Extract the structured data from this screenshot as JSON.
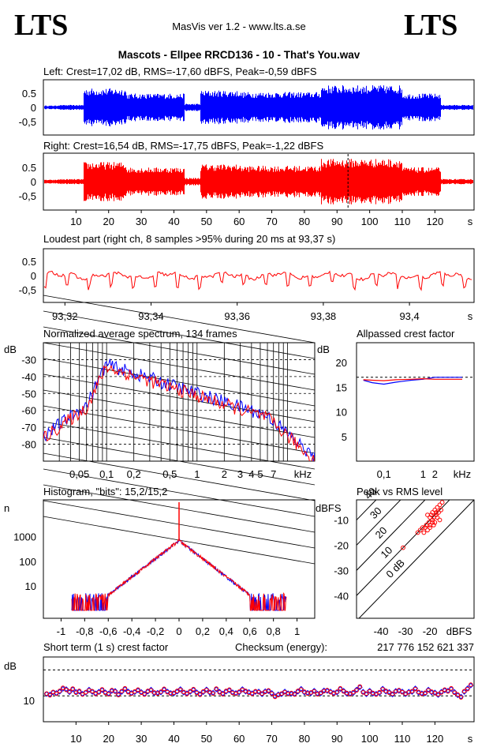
{
  "header": {
    "logo_left": "LTS",
    "logo_right": "LTS",
    "app": "MasVis ver 1.2 - www.lts.a.se",
    "track": "Mascots - Ellpee RRCD136 - 10 - That's You.wav"
  },
  "colors": {
    "left": "#0000ff",
    "right": "#ff0000"
  },
  "chart_data": [
    {
      "type": "line",
      "title": "Left: Crest=17,02 dB, RMS=-17,60 dBFS, Peak=-0,59 dBFS",
      "yticks": [
        "0.5",
        "0",
        "-0,5"
      ],
      "ylim": [
        -1,
        1
      ],
      "xlim": [
        0,
        132
      ],
      "series": [
        {
          "name": "Left",
          "color": "#0000ff"
        }
      ]
    },
    {
      "type": "line",
      "title": "Right: Crest=16,54 dB, RMS=-17,75 dBFS, Peak=-1,22 dBFS",
      "yticks": [
        "0.5",
        "0",
        "-0,5"
      ],
      "ylim": [
        -1,
        1
      ],
      "xlim": [
        0,
        132
      ],
      "xticks": [
        "10",
        "20",
        "30",
        "40",
        "50",
        "60",
        "70",
        "80",
        "90",
        "100",
        "110",
        "120",
        "s"
      ],
      "marker_x": 93.37,
      "series": [
        {
          "name": "Right",
          "color": "#ff0000"
        }
      ]
    },
    {
      "type": "line",
      "title": "Loudest part (right ch, 8 samples >95% during 20 ms at 93,37 s)",
      "yticks": [
        "0.5",
        "0",
        "-0,5"
      ],
      "ylim": [
        -1,
        1
      ],
      "xlim": [
        93.315,
        93.415
      ],
      "xticks": [
        "93,32",
        "93,34",
        "93,36",
        "93,38",
        "93,4",
        "s"
      ]
    },
    {
      "type": "line",
      "title": "Normalized average spectrum, 134 frames",
      "ylabel": "dB",
      "yticks": [
        "-30",
        "-40",
        "-50",
        "-60",
        "-70",
        "-80"
      ],
      "xticks": [
        "0,05",
        "0,1",
        "0,2",
        "0,5",
        "1",
        "2",
        "3",
        "4",
        "5",
        "7",
        "kHz"
      ],
      "ylim": [
        -90,
        -20
      ],
      "x_log": true
    },
    {
      "type": "line",
      "title": "Allpassed crest factor",
      "ylabel": "dB",
      "yticks": [
        "20",
        "15",
        "10",
        "5"
      ],
      "xticks": [
        "0,1",
        "1",
        "2",
        "kHz"
      ],
      "ylim": [
        0,
        24
      ],
      "series": [
        {
          "name": "Left",
          "x": [
            0.03,
            0.05,
            0.1,
            0.2,
            0.5,
            1,
            2,
            5,
            10
          ],
          "values": [
            16.4,
            15.9,
            15.6,
            16.0,
            16.4,
            16.6,
            17.0,
            17.0,
            17.0
          ]
        },
        {
          "name": "Right",
          "x": [
            0.03,
            0.05,
            0.1,
            0.2,
            0.5,
            1,
            2,
            5,
            10
          ],
          "values": [
            16.5,
            16.4,
            16.3,
            16.5,
            16.6,
            16.7,
            16.6,
            16.6,
            16.6
          ]
        }
      ]
    },
    {
      "type": "line",
      "title": "Histogram, \"bits\": 15,2/15,2",
      "ylabel": "n",
      "yticks": [
        "1000",
        "100",
        "10"
      ],
      "xticks": [
        "-1",
        "-0,8",
        "-0,6",
        "-0,4",
        "-0,2",
        "0",
        "0,2",
        "0,4",
        "0,6",
        "0,8",
        "1"
      ],
      "x_range": [
        -1,
        1
      ],
      "y_log": true
    },
    {
      "type": "scatter",
      "title": "Peak vs RMS level",
      "ylabel": "dBFS",
      "yticks": [
        "-10",
        "-20",
        "-30",
        "-40"
      ],
      "xticks": [
        "-40",
        "-30",
        "-20",
        "dBFS"
      ],
      "diag_labels": [
        "40",
        "30",
        "20",
        "10",
        "0 dB"
      ],
      "ylim": [
        -49,
        -2
      ],
      "xlim": [
        -50,
        -2
      ],
      "points": [
        [
          -21,
          -8
        ],
        [
          -20,
          -9
        ],
        [
          -19,
          -7
        ],
        [
          -18,
          -6
        ],
        [
          -18.5,
          -9
        ],
        [
          -17,
          -5
        ],
        [
          -17.5,
          -8
        ],
        [
          -16,
          -4
        ],
        [
          -16.5,
          -7
        ],
        [
          -15,
          -3
        ],
        [
          -15.5,
          -6
        ],
        [
          -20.5,
          -11
        ],
        [
          -19,
          -11
        ],
        [
          -21.5,
          -12
        ],
        [
          -22,
          -13
        ],
        [
          -23,
          -13
        ],
        [
          -20,
          -13
        ],
        [
          -24,
          -14
        ],
        [
          -22.5,
          -15
        ],
        [
          -25,
          -15
        ],
        [
          -21,
          -14
        ],
        [
          -19,
          -10
        ],
        [
          -17,
          -9
        ],
        [
          -18,
          -11
        ],
        [
          -16,
          -10
        ],
        [
          -20,
          -12
        ],
        [
          -17.5,
          -7
        ],
        [
          -19.5,
          -8
        ],
        [
          -18.5,
          -12
        ],
        [
          -31,
          -21
        ]
      ]
    },
    {
      "type": "scatter",
      "title": "Short term (1 s) crest factor",
      "ylabel": "dB",
      "ytick": "10",
      "xticks": [
        "10",
        "20",
        "30",
        "40",
        "50",
        "60",
        "70",
        "80",
        "90",
        "100",
        "110",
        "120",
        "s"
      ],
      "ylim": [
        0,
        25
      ],
      "xlim": [
        0,
        132
      ],
      "right_values": [
        10.9,
        10.2,
        11.5,
        10.8,
        11.9,
        13.1,
        12.3,
        11.7,
        12.8,
        11.2,
        11.9,
        10.5,
        11.4,
        12.1,
        11.8,
        10.7,
        11.3,
        12.5,
        11.1,
        10.6,
        12.2,
        11.6,
        10.3,
        11.8,
        12.9,
        11.4,
        10.8,
        11.7,
        12.4,
        11.2,
        10.5,
        11.9,
        12.1,
        11.3,
        10.9,
        11.6,
        12.7,
        11.4,
        10.8,
        11.2,
        11.9,
        12.3,
        11.5,
        10.7,
        11.8,
        12.6,
        11.1,
        10.4,
        11.7,
        12.2,
        11.5,
        10.9,
        12.8,
        11.3,
        10.6,
        11.9,
        12.4,
        11.1,
        10.8,
        11.6,
        12.3,
        11.9,
        11.2,
        10.7,
        11.8,
        11.4,
        10.9,
        11.5,
        12.1,
        10.8,
        9.6,
        10.3,
        10.9,
        11.4,
        10.7,
        11.1,
        10.5,
        11.9,
        12.4,
        11.6,
        10.9,
        11.3,
        11.7,
        10.6,
        11.2,
        11.8,
        12.2,
        11.4,
        10.8,
        11.6,
        12.9,
        11.7,
        11.1,
        10.6,
        11.4,
        12.1,
        13.6,
        11.3,
        10.9,
        11.7,
        11.1,
        10.5,
        11.4,
        12.5,
        11.9,
        11.2,
        10.8,
        11.6,
        12.2,
        11.4,
        10.9,
        11.3,
        11.8,
        12.6,
        11.5,
        10.7,
        11.2,
        12.1,
        11.6,
        11.0,
        10.6,
        11.3,
        12.4,
        11.7,
        12.9,
        11.2,
        10.5,
        9.4,
        11.8,
        12.6,
        14.3
      ],
      "left_values": [
        10.7,
        10.5,
        11.3,
        11.1,
        11.6,
        12.7,
        12.6,
        11.4,
        12.5,
        11.5,
        11.6,
        10.8,
        11.2,
        12.4,
        11.5,
        11.0,
        11.6,
        12.2,
        11.4,
        10.9,
        11.9,
        11.9,
        10.6,
        11.5,
        12.6,
        11.7,
        11.1,
        11.4,
        12.1,
        11.5,
        10.8,
        11.6,
        12.4,
        11.0,
        11.2,
        11.3,
        12.4,
        11.7,
        11.1,
        10.9,
        11.6,
        12.6,
        11.2,
        11.0,
        11.5,
        12.3,
        11.4,
        10.7,
        11.4,
        12.5,
        11.2,
        11.2,
        12.5,
        11.6,
        10.9,
        11.6,
        12.1,
        11.4,
        11.1,
        11.3,
        12.6,
        11.6,
        11.5,
        11.0,
        11.5,
        11.7,
        10.6,
        11.8,
        11.8,
        11.1,
        9.9,
        10.6,
        10.6,
        11.7,
        11.0,
        10.8,
        10.8,
        11.6,
        12.7,
        11.3,
        11.2,
        11.0,
        12.0,
        10.9,
        10.9,
        12.1,
        11.9,
        11.7,
        11.1,
        11.3,
        12.6,
        12.0,
        10.8,
        10.9,
        11.1,
        12.4,
        13.3,
        11.6,
        10.6,
        12.0,
        10.8,
        10.8,
        11.1,
        12.8,
        11.6,
        11.5,
        10.5,
        11.9,
        11.9,
        11.7,
        10.6,
        11.6,
        11.5,
        12.9,
        11.2,
        11.0,
        10.9,
        12.4,
        11.3,
        11.3,
        10.3,
        11.6,
        12.1,
        12.0,
        12.6,
        11.5,
        10.2,
        9.7,
        11.5,
        12.9,
        14.0
      ]
    }
  ],
  "checksum": {
    "label": "Checksum (energy):",
    "value": "217 776 152 621 337"
  }
}
